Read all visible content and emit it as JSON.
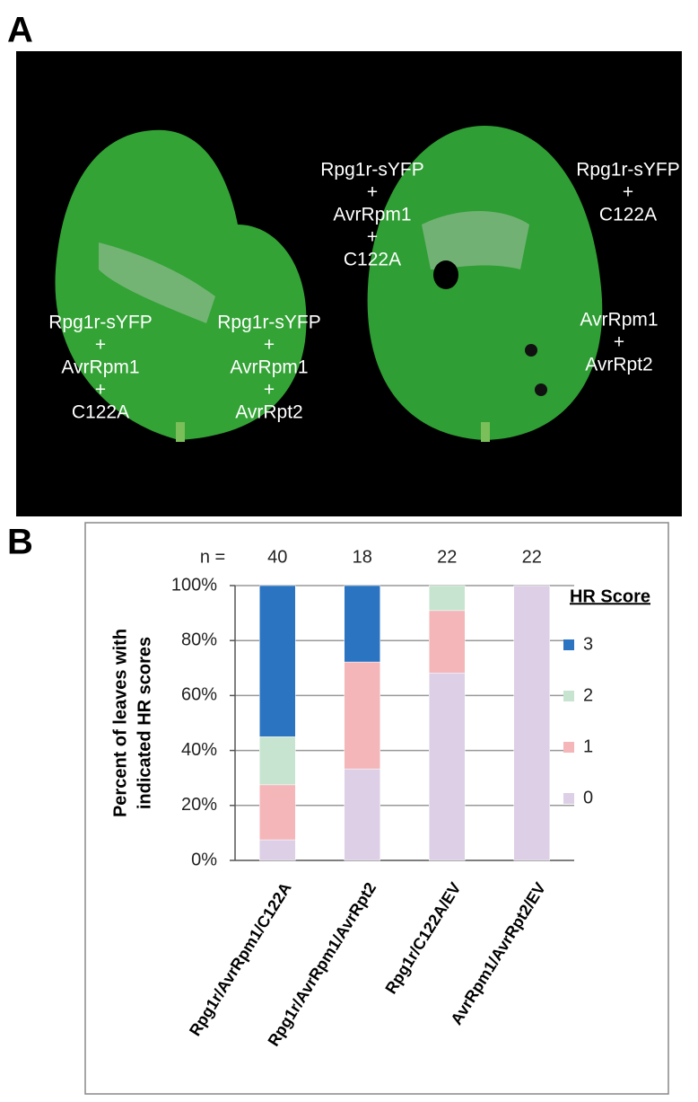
{
  "panel_a": {
    "label": "A",
    "labels": [
      [
        "Rpg1r-sYFP",
        "+",
        "AvrRpm1",
        "+",
        "C122A"
      ],
      [
        "Rpg1r-sYFP",
        "+",
        "AvrRpm1",
        "+",
        "AvrRpt2"
      ],
      [
        "Rpg1r-sYFP",
        "+",
        "AvrRpm1",
        "+",
        "C122A"
      ],
      [
        "Rpg1r-sYFP",
        "+",
        "C122A"
      ],
      [
        "AvrRpm1",
        "+",
        "AvrRpt2"
      ]
    ]
  },
  "panel_b": {
    "label": "B"
  },
  "chart_data": {
    "type": "stacked_bar",
    "y_label": [
      "Percent of leaves with",
      "indicated HR scores"
    ],
    "n_label": "n =",
    "n": [
      40,
      18,
      22,
      22
    ],
    "categories": [
      "Rpg1r/AvrRpm1/C122A",
      "Rpg1r/AvrRpm1/AvrRpt2",
      "Rpg1r/C122A/EV",
      "AvrRpm1/AvrRpt2/EV"
    ],
    "legend_title": "HR Score",
    "series": [
      {
        "name": "0",
        "color": "#dccfe6",
        "values": [
          7.5,
          33.3,
          68.2,
          100
        ]
      },
      {
        "name": "1",
        "color": "#f4b6b8",
        "values": [
          20,
          38.9,
          22.7,
          0
        ]
      },
      {
        "name": "2",
        "color": "#c6e4cf",
        "values": [
          17.5,
          0,
          9.1,
          0
        ]
      },
      {
        "name": "3",
        "color": "#2b74c2",
        "values": [
          55,
          27.8,
          0,
          0
        ]
      }
    ],
    "ylim": [
      0,
      100
    ],
    "yticks": [
      {
        "value": 0,
        "label": "0%"
      },
      {
        "value": 20,
        "label": "20%"
      },
      {
        "value": 40,
        "label": "40%"
      },
      {
        "value": 60,
        "label": "60%"
      },
      {
        "value": 80,
        "label": "80%"
      },
      {
        "value": 100,
        "label": "100%"
      }
    ],
    "grid": true
  }
}
